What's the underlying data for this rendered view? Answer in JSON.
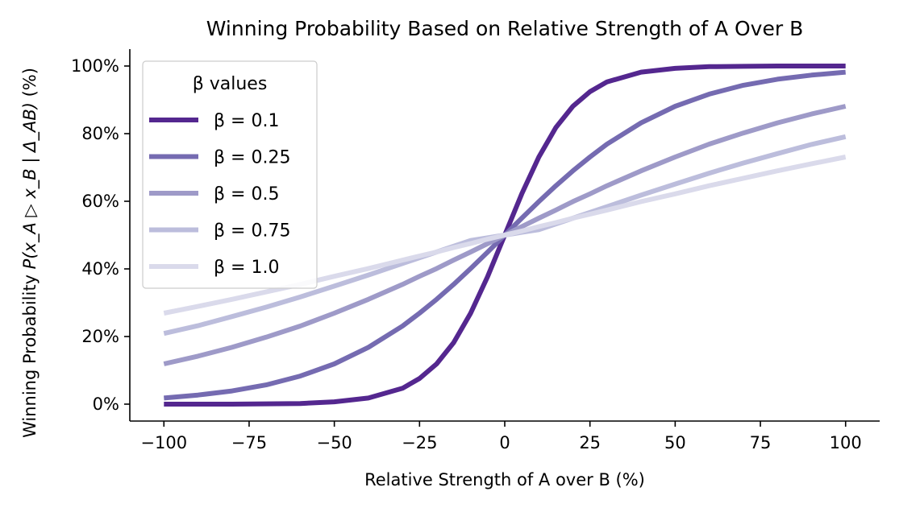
{
  "chart_data": {
    "type": "line",
    "title": "Winning Probability Based on Relative Strength of A Over B",
    "xlabel": "Relative Strength of A over B (%)",
    "ylabel_parts": {
      "prefix": "Winning Probability ",
      "formula": "P(x_A ▷ x_B | Δ_AB)",
      "suffix": " (%)"
    },
    "xlim": [
      -110,
      110
    ],
    "ylim": [
      -5,
      105
    ],
    "xticks": [
      -100,
      -75,
      -50,
      -25,
      0,
      25,
      50,
      75,
      100
    ],
    "xtick_labels": [
      "−100",
      "−75",
      "−50",
      "−25",
      "0",
      "25",
      "50",
      "75",
      "100"
    ],
    "yticks": [
      0,
      20,
      40,
      60,
      80,
      100
    ],
    "ytick_labels": [
      "0%",
      "20%",
      "40%",
      "60%",
      "80%",
      "100%"
    ],
    "x": [
      -100,
      -90,
      -80,
      -70,
      -60,
      -50,
      -40,
      -30,
      -25,
      -20,
      -15,
      -10,
      -5,
      0,
      5,
      10,
      15,
      20,
      25,
      30,
      40,
      50,
      60,
      70,
      80,
      90,
      100
    ],
    "series": [
      {
        "name": "β = 0.1",
        "color": "#54278f",
        "values": [
          0.0,
          0.0,
          0.0,
          0.1,
          0.2,
          0.7,
          1.8,
          4.7,
          7.6,
          11.9,
          18.2,
          26.9,
          37.8,
          50.0,
          62.2,
          73.1,
          81.8,
          88.1,
          92.4,
          95.3,
          98.2,
          99.3,
          99.8,
          99.9,
          100.0,
          100.0,
          100.0
        ]
      },
      {
        "name": "β = 0.25",
        "color": "#756bb1",
        "values": [
          1.8,
          2.7,
          3.9,
          5.7,
          8.3,
          11.9,
          16.8,
          23.1,
          26.9,
          31.0,
          35.4,
          40.1,
          45.0,
          50.0,
          55.0,
          59.9,
          64.6,
          69.0,
          73.1,
          76.9,
          83.2,
          88.1,
          91.7,
          94.3,
          96.1,
          97.3,
          98.2
        ]
      },
      {
        "name": "β = 0.5",
        "color": "#9e9ac8",
        "values": [
          11.9,
          14.2,
          16.8,
          19.8,
          23.1,
          26.9,
          31.0,
          35.4,
          37.8,
          40.1,
          42.6,
          45.0,
          47.5,
          50.0,
          52.5,
          55.0,
          57.4,
          59.9,
          62.2,
          64.6,
          69.0,
          73.1,
          76.9,
          80.2,
          83.2,
          85.8,
          88.1
        ]
      },
      {
        "name": "β = 0.75",
        "color": "#bcbddc",
        "values": [
          20.9,
          23.2,
          25.9,
          28.7,
          31.7,
          34.9,
          38.2,
          41.6,
          43.3,
          45.0,
          46.7,
          48.4,
          49.2,
          50.0,
          50.8,
          51.6,
          53.3,
          55.0,
          56.7,
          58.4,
          61.8,
          65.1,
          68.3,
          71.3,
          74.1,
          76.8,
          79.1
        ]
      },
      {
        "name": "β = 1.0",
        "color": "#dadaeb",
        "values": [
          26.9,
          28.9,
          31.0,
          33.2,
          35.4,
          37.8,
          40.1,
          42.6,
          43.8,
          45.0,
          46.3,
          47.5,
          48.8,
          50.0,
          51.2,
          52.5,
          53.7,
          55.0,
          56.2,
          57.4,
          59.9,
          62.2,
          64.6,
          66.8,
          69.0,
          71.1,
          73.1
        ]
      }
    ],
    "legend": {
      "title": "β values",
      "placement": "upper-left"
    },
    "grid": false
  }
}
